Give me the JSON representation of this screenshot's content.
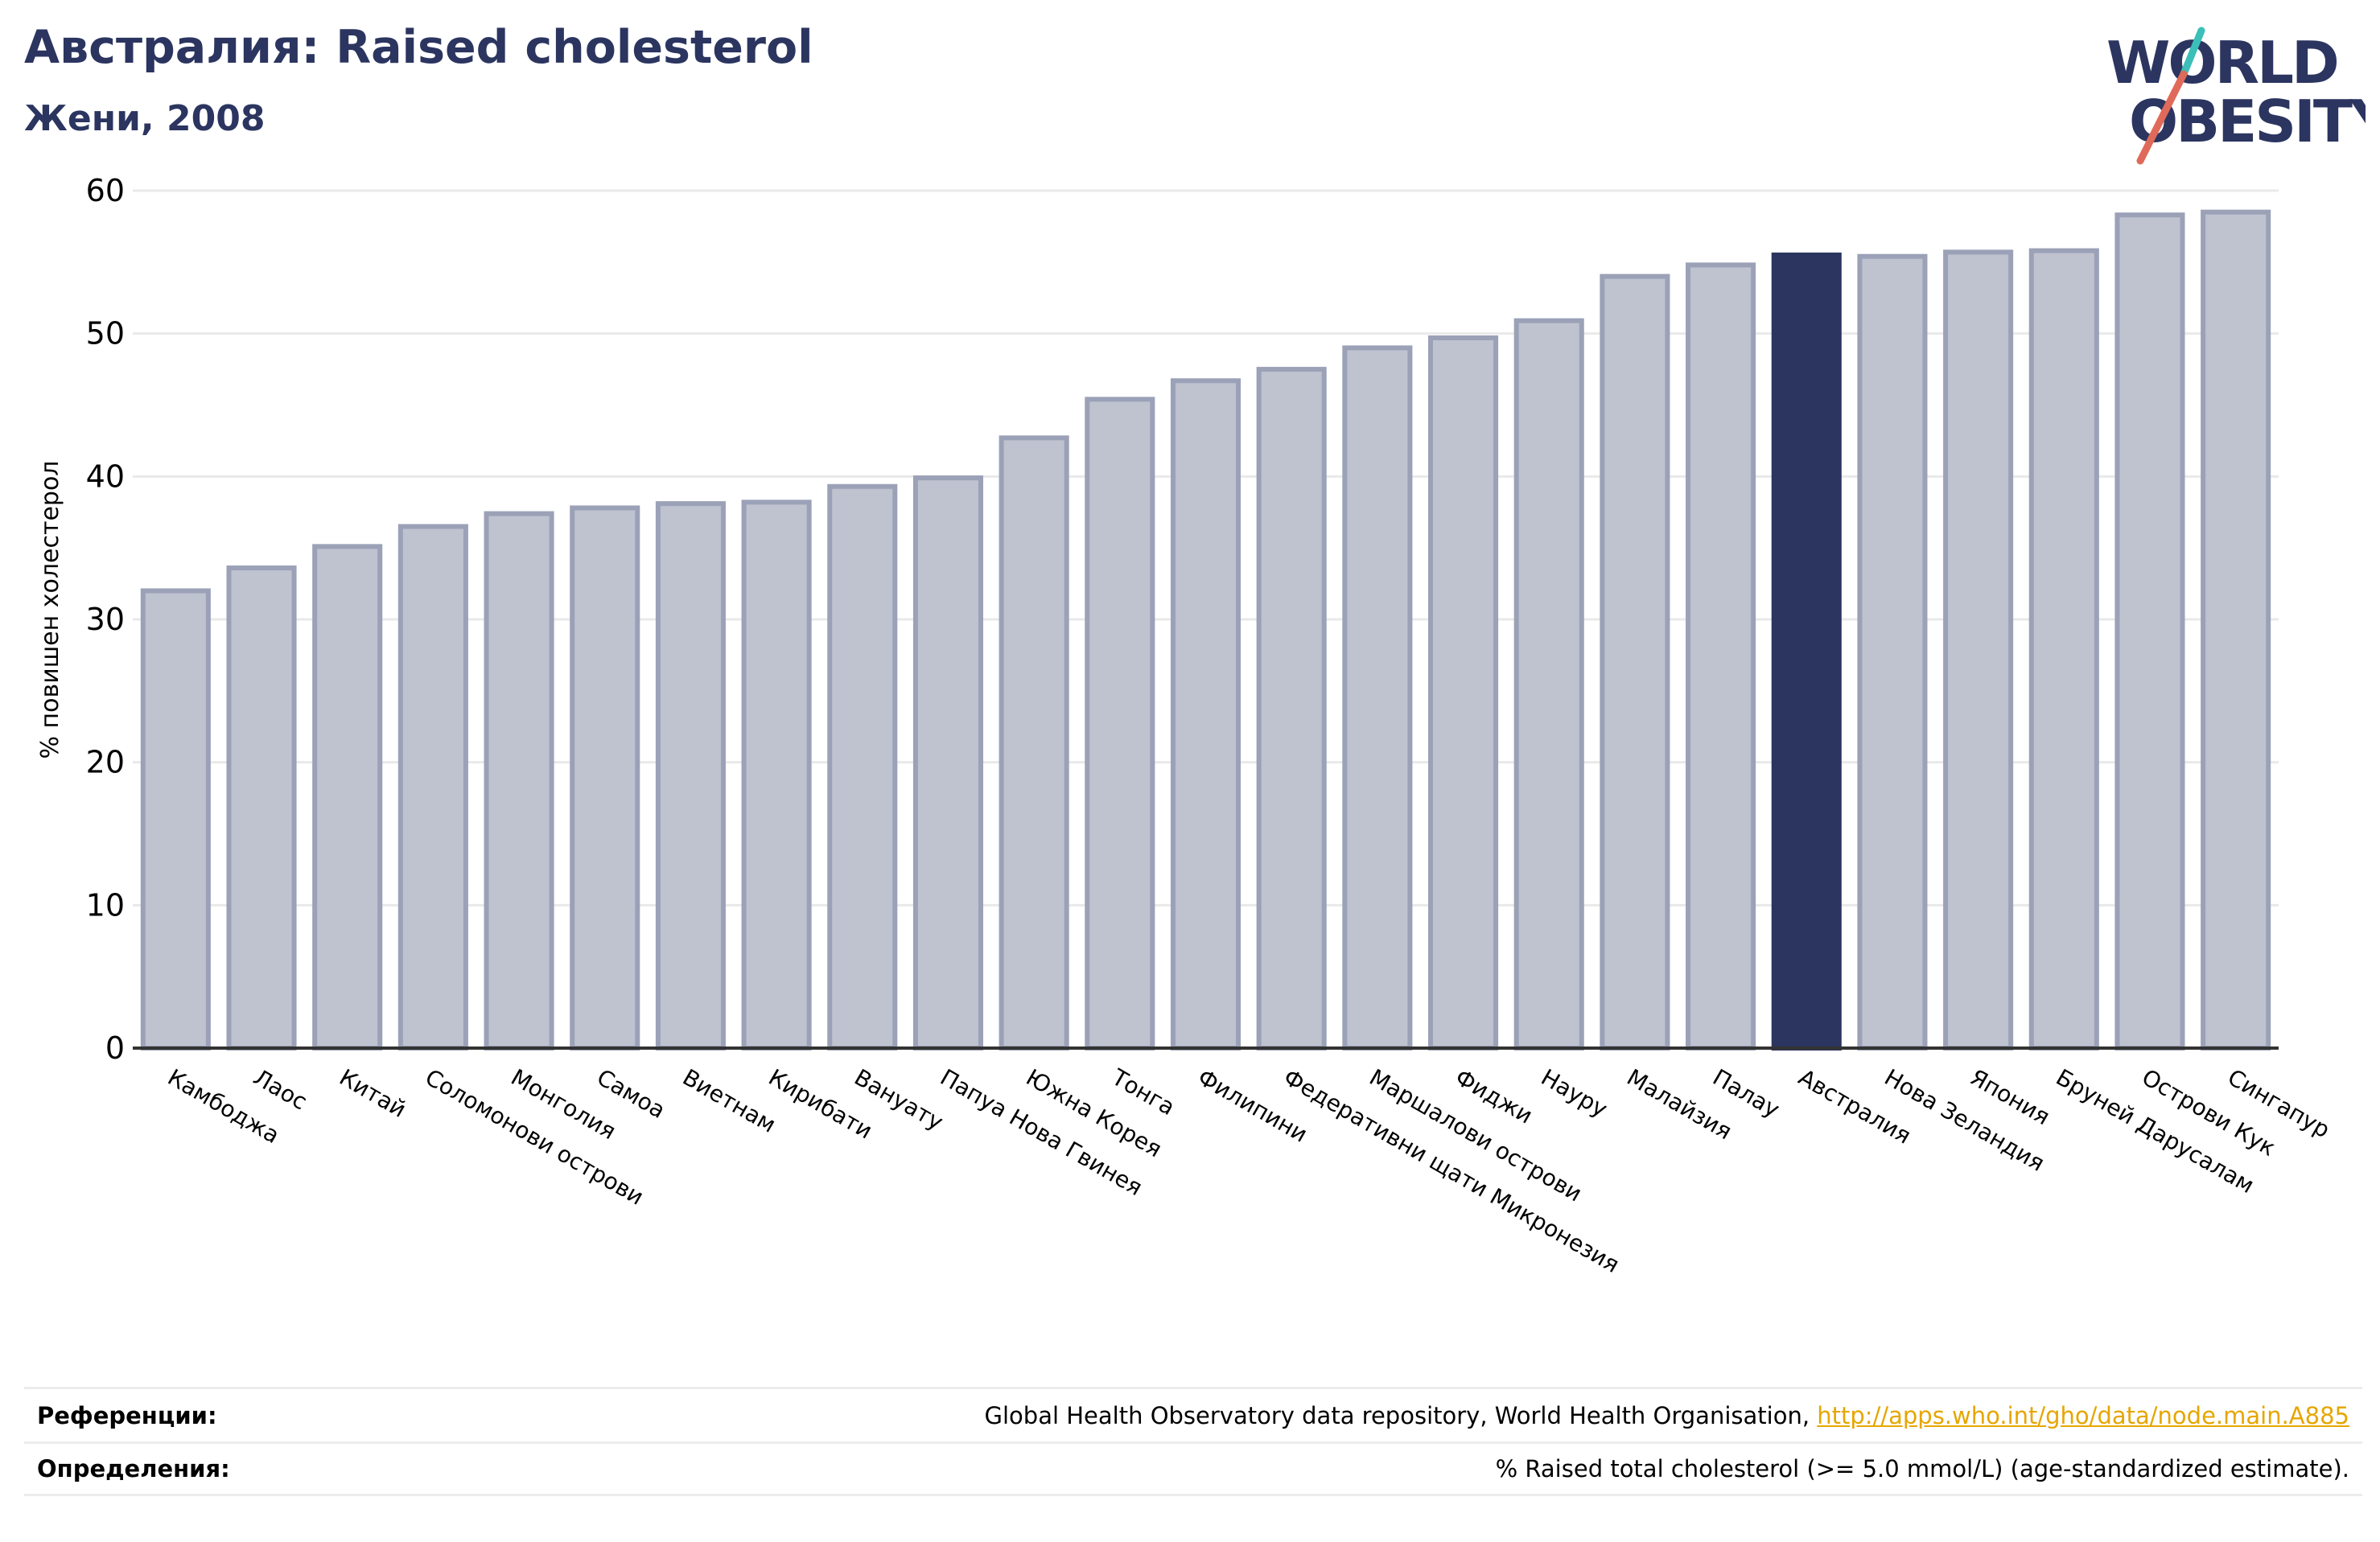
{
  "header": {
    "title": "Австралия: Raised cholesterol",
    "subtitle": "Жени, 2008"
  },
  "logo": {
    "line1": "WORLD",
    "line2": "OBESITY",
    "colors": {
      "text": "#2b3560",
      "slash_teal": "#3bbfb8",
      "slash_red": "#e06a5a"
    }
  },
  "chart_data": {
    "type": "bar",
    "title": "",
    "xlabel": "",
    "ylabel": "% повишен холестерол",
    "ylim": [
      0,
      60
    ],
    "yticks": [
      0,
      10,
      20,
      30,
      40,
      50,
      60
    ],
    "grid": true,
    "highlight": "Австралия",
    "colors": {
      "bar": "#bfc2cf",
      "bar_edge": "#9ba1b7",
      "highlight": "#2b3560",
      "grid": "#e9e9e9",
      "axis": "#333333"
    },
    "categories": [
      "Камбоджа",
      "Лаос",
      "Китай",
      "Соломонови острови",
      "Монголия",
      "Самоа",
      "Виетнам",
      "Кирибати",
      "Вануату",
      "Папуа Нова Гвинея",
      "Южна Корея",
      "Тонга",
      "Филипини",
      "Федеративни щати Микронезия",
      "Маршалови острови",
      "Фиджи",
      "Науру",
      "Малайзия",
      "Палау",
      "Австралия",
      "Нова Зеландия",
      "Япония",
      "Бруней Дарусалам",
      "Острови Кук",
      "Сингапур"
    ],
    "values": [
      32.0,
      33.6,
      35.1,
      36.5,
      37.4,
      37.8,
      38.1,
      38.2,
      39.3,
      39.9,
      42.7,
      45.4,
      46.7,
      47.5,
      49.0,
      49.7,
      50.9,
      54.0,
      54.8,
      55.5,
      55.4,
      55.7,
      55.8,
      58.3,
      58.5
    ]
  },
  "references": {
    "sources_label": "Референции:",
    "sources_text": "Global Health Observatory data repository, World Health Organisation, ",
    "sources_link": "http://apps.who.int/gho/data/node.main.A885",
    "definitions_label": "Определения:",
    "definitions_text": "% Raised total cholesterol (>= 5.0 mmol/L) (age-standardized estimate)."
  }
}
